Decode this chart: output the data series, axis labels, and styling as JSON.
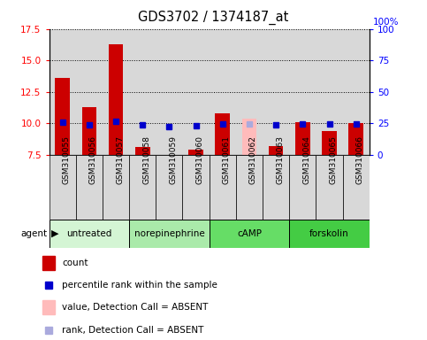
{
  "title": "GDS3702 / 1374187_at",
  "samples": [
    "GSM310055",
    "GSM310056",
    "GSM310057",
    "GSM310058",
    "GSM310059",
    "GSM310060",
    "GSM310061",
    "GSM310062",
    "GSM310063",
    "GSM310064",
    "GSM310065",
    "GSM310066"
  ],
  "counts": [
    13.6,
    11.3,
    16.3,
    8.1,
    7.5,
    7.9,
    10.8,
    10.4,
    8.2,
    10.1,
    9.4,
    10.0
  ],
  "percentile_ranks": [
    25.5,
    24.0,
    26.5,
    24.0,
    22.5,
    23.0,
    24.5,
    24.5,
    23.5,
    24.5,
    24.5,
    24.5
  ],
  "absent_value_indices": [
    7
  ],
  "absent_rank_indices": [
    7
  ],
  "agents": [
    {
      "label": "untreated",
      "start": 0,
      "end": 3,
      "color": "#d4f5d4"
    },
    {
      "label": "norepinephrine",
      "start": 3,
      "end": 6,
      "color": "#aaeaaa"
    },
    {
      "label": "cAMP",
      "start": 6,
      "end": 9,
      "color": "#66dd66"
    },
    {
      "label": "forskolin",
      "start": 9,
      "end": 12,
      "color": "#44cc44"
    }
  ],
  "ylim_left": [
    7.5,
    17.5
  ],
  "ylim_right": [
    0,
    100
  ],
  "yticks_left": [
    7.5,
    10.0,
    12.5,
    15.0,
    17.5
  ],
  "yticks_right": [
    0,
    25,
    50,
    75,
    100
  ],
  "bar_color": "#cc0000",
  "rank_color": "#0000cc",
  "absent_bar_color": "#ffbbbb",
  "absent_rank_color": "#aaaadd",
  "col_bg_color": "#d8d8d8",
  "legend_items": [
    {
      "color": "#cc0000",
      "type": "rect",
      "label": "count"
    },
    {
      "color": "#0000cc",
      "type": "square",
      "label": "percentile rank within the sample"
    },
    {
      "color": "#ffbbbb",
      "type": "rect",
      "label": "value, Detection Call = ABSENT"
    },
    {
      "color": "#aaaadd",
      "type": "square",
      "label": "rank, Detection Call = ABSENT"
    }
  ]
}
